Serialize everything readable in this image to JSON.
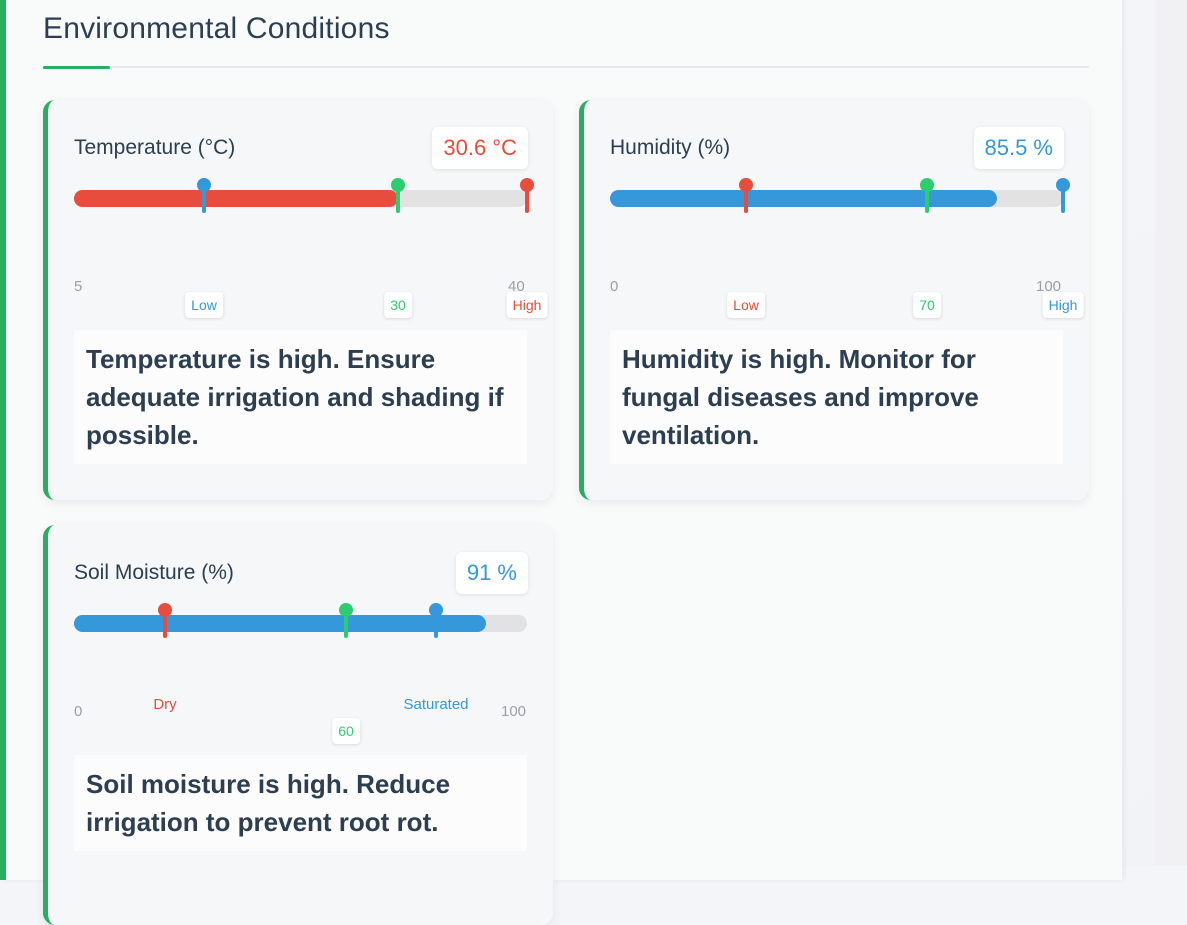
{
  "section": {
    "title": "Environmental Conditions"
  },
  "cards": [
    {
      "label": "Temperature (°C)",
      "value": "30.6 °C",
      "value_color": "#e74c3c",
      "fill_fraction": 0.732,
      "fill_color": "#e74c3c",
      "scale_min": "5",
      "scale_max": "40",
      "markers": [
        {
          "label": "Low",
          "color": "#3498db",
          "position_value": 15
        },
        {
          "label": "30",
          "color": "#2ecc71",
          "position_value": 30
        },
        {
          "label": "High",
          "color": "#e74c3c",
          "position_value": 40
        }
      ],
      "advice": "Temperature is high. Ensure adequate irrigation and shading if possible."
    },
    {
      "label": "Humidity (%)",
      "value": "85.5 %",
      "value_color": "#3498db",
      "fill_fraction": 0.855,
      "fill_color": "#3498db",
      "scale_min": "0",
      "scale_max": "100",
      "markers": [
        {
          "label": "Low",
          "color": "#e74c3c",
          "position_value": 30
        },
        {
          "label": "70",
          "color": "#2ecc71",
          "position_value": 70
        },
        {
          "label": "High",
          "color": "#3498db",
          "position_value": 100
        }
      ],
      "advice": "Humidity is high. Monitor for fungal diseases and improve ventilation."
    },
    {
      "label": "Soil Moisture (%)",
      "value": "91 %",
      "value_color": "#3498db",
      "fill_fraction": 0.91,
      "fill_color": "#3498db",
      "scale_min": "0",
      "scale_max": "100",
      "markers": [
        {
          "label": "Dry",
          "color": "#e74c3c",
          "position_value": 20
        },
        {
          "label": "60",
          "color": "#2ecc71",
          "position_value": 60
        },
        {
          "label": "Saturated",
          "color": "#3498db",
          "position_value": 80
        }
      ],
      "advice": "Soil moisture is high. Reduce irrigation to prevent root rot."
    }
  ]
}
